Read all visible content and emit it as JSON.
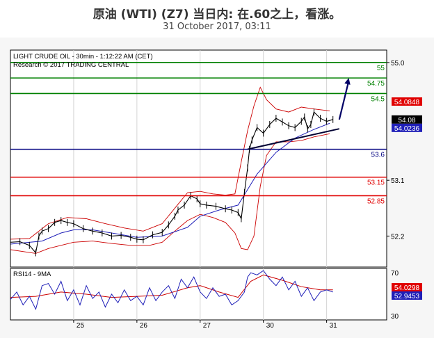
{
  "page": {
    "title": "原油 (WTI) (Z7) 当日内: 在.60之上，看涨。",
    "date": "31 October 2017, 03:11"
  },
  "chart_data": [
    {
      "type": "line",
      "title": "LIGHT CRUDE OIL - 30min - 1:12:22 AM (CET)",
      "subtitle": "Research © 2017 TRADING CENTRAL",
      "x_tick_labels": [
        "25",
        "26",
        "27",
        "30",
        "31"
      ],
      "x_tick_positions": [
        1,
        2,
        3,
        4,
        5
      ],
      "xlim": [
        0,
        5.95
      ],
      "ylim": [
        51.7,
        55.2
      ],
      "y_ticks": [
        52.2,
        53.1,
        55.0
      ],
      "y_tick_labels": [
        "52.2",
        "53.1",
        "55.0"
      ],
      "colors": {
        "resistance": "#008000",
        "pivot": "#000080",
        "support": "#e00000",
        "price": "#000000",
        "ma": "#1f1fb8",
        "band": "#cc0000",
        "arrow": "#000066"
      },
      "levels": [
        {
          "name": "resistance-3",
          "value": 55.0,
          "label": "55",
          "color": "#008000"
        },
        {
          "name": "resistance-2",
          "value": 54.75,
          "label": "54.75",
          "color": "#008000"
        },
        {
          "name": "resistance-1",
          "value": 54.5,
          "label": "54.5",
          "color": "#008000"
        },
        {
          "name": "pivot",
          "value": 53.6,
          "label": "53.6",
          "color": "#000080"
        },
        {
          "name": "support-1",
          "value": 53.15,
          "label": "53.15",
          "color": "#e00000"
        },
        {
          "name": "support-2",
          "value": 52.85,
          "label": "52.85",
          "color": "#e00000"
        }
      ],
      "price_tags": [
        {
          "name": "upper-band-tag",
          "value": 54.0848,
          "label": "54.0848",
          "bg": "#e00000",
          "fg": "#ffffff"
        },
        {
          "name": "last-price-tag",
          "value": 54.08,
          "label": "54.08",
          "bg": "#000000",
          "fg": "#ffffff"
        },
        {
          "name": "ma-tag",
          "value": 54.0236,
          "label": "54.0236",
          "bg": "#1f1fb8",
          "fg": "#ffffff"
        }
      ],
      "trendline": {
        "x": [
          3.75,
          5.2
        ],
        "y": [
          53.6,
          53.93
        ]
      },
      "arrow": {
        "x": [
          5.2,
          5.35
        ],
        "y": [
          54.08,
          54.75
        ]
      },
      "price": {
        "x": [
          0.0,
          0.15,
          0.3,
          0.4,
          0.45,
          0.5,
          0.6,
          0.7,
          0.8,
          0.9,
          1.0,
          1.15,
          1.3,
          1.45,
          1.6,
          1.75,
          1.9,
          2.0,
          2.1,
          2.25,
          2.4,
          2.5,
          2.6,
          2.65,
          2.75,
          2.85,
          2.95,
          3.0,
          3.1,
          3.25,
          3.4,
          3.5,
          3.6,
          3.65,
          3.7,
          3.75,
          3.78,
          3.82,
          3.9,
          4.0,
          4.1,
          4.2,
          4.3,
          4.4,
          4.5,
          4.6,
          4.65,
          4.7,
          4.75,
          4.8,
          4.9,
          5.0,
          5.1
        ],
        "y": [
          52.1,
          52.11,
          52.05,
          51.93,
          52.2,
          52.28,
          52.32,
          52.42,
          52.45,
          52.42,
          52.4,
          52.32,
          52.28,
          52.25,
          52.2,
          52.21,
          52.18,
          52.15,
          52.14,
          52.22,
          52.26,
          52.38,
          52.52,
          52.62,
          52.7,
          52.85,
          52.8,
          52.72,
          52.7,
          52.68,
          52.64,
          52.62,
          52.58,
          52.48,
          52.9,
          53.3,
          53.6,
          53.75,
          53.95,
          53.86,
          54.0,
          54.1,
          54.04,
          53.98,
          53.95,
          54.05,
          54.12,
          53.93,
          54.0,
          54.2,
          54.1,
          54.05,
          54.08
        ]
      },
      "ma": {
        "x": [
          0.0,
          0.5,
          0.8,
          1.0,
          1.3,
          1.6,
          2.0,
          2.4,
          2.8,
          3.0,
          3.3,
          3.6,
          3.9,
          4.2,
          4.5,
          4.8,
          5.05
        ],
        "y": [
          52.07,
          52.12,
          52.25,
          52.3,
          52.3,
          52.25,
          52.18,
          52.2,
          52.34,
          52.52,
          52.62,
          52.7,
          53.2,
          53.55,
          53.78,
          53.92,
          54.02
        ]
      },
      "upper_band": {
        "x": [
          0.0,
          0.3,
          0.6,
          0.9,
          1.2,
          1.5,
          1.8,
          2.1,
          2.4,
          2.6,
          2.8,
          3.0,
          3.2,
          3.4,
          3.55,
          3.65,
          3.75,
          3.85,
          3.95,
          4.05,
          4.2,
          4.4,
          4.6,
          4.8,
          5.05
        ],
        "y": [
          52.15,
          52.16,
          52.4,
          52.5,
          52.48,
          52.4,
          52.33,
          52.28,
          52.4,
          52.65,
          52.9,
          52.92,
          52.88,
          52.86,
          52.88,
          53.4,
          53.9,
          54.3,
          54.6,
          54.4,
          54.25,
          54.2,
          54.28,
          54.25,
          54.22
        ]
      },
      "lower_band": {
        "x": [
          0.0,
          0.2,
          0.4,
          0.6,
          0.8,
          1.0,
          1.3,
          1.6,
          1.9,
          2.2,
          2.4,
          2.6,
          2.8,
          3.0,
          3.2,
          3.4,
          3.55,
          3.65,
          3.75,
          3.85,
          3.95,
          4.05,
          4.2,
          4.4,
          4.6,
          4.8,
          5.05
        ],
        "y": [
          51.98,
          51.95,
          51.92,
          52.0,
          52.05,
          52.1,
          52.12,
          52.08,
          52.05,
          52.05,
          52.1,
          52.28,
          52.45,
          52.55,
          52.5,
          52.42,
          52.25,
          52.0,
          51.98,
          52.2,
          53.0,
          53.5,
          53.72,
          53.72,
          53.74,
          53.8,
          53.85
        ]
      }
    },
    {
      "type": "line",
      "title": "RSI14 - 9MA",
      "xlim": [
        0,
        5.95
      ],
      "ylim": [
        26,
        74
      ],
      "y_ticks": [
        30,
        70
      ],
      "y_tick_labels": [
        "30",
        "70"
      ],
      "colors": {
        "rsi": "#1f1fb8",
        "ma": "#cc0000"
      },
      "price_tags": [
        {
          "name": "rsi-ma-tag",
          "value": 54.0298,
          "label": "54.0298",
          "bg": "#e00000",
          "fg": "#ffffff"
        },
        {
          "name": "rsi-tag",
          "value": 52.9453,
          "label": "52.9453",
          "bg": "#1f1fb8",
          "fg": "#ffffff"
        }
      ],
      "rsi": {
        "x": [
          0.0,
          0.1,
          0.2,
          0.3,
          0.4,
          0.5,
          0.6,
          0.7,
          0.8,
          0.9,
          1.0,
          1.1,
          1.2,
          1.3,
          1.4,
          1.5,
          1.6,
          1.7,
          1.8,
          1.9,
          2.0,
          2.1,
          2.2,
          2.3,
          2.4,
          2.5,
          2.6,
          2.7,
          2.8,
          2.9,
          3.0,
          3.1,
          3.2,
          3.3,
          3.4,
          3.5,
          3.6,
          3.7,
          3.75,
          3.8,
          3.9,
          4.0,
          4.1,
          4.2,
          4.3,
          4.4,
          4.5,
          4.6,
          4.7,
          4.8,
          4.9,
          5.0,
          5.1
        ],
        "y": [
          45,
          52,
          40,
          48,
          36,
          58,
          60,
          50,
          62,
          44,
          54,
          40,
          58,
          46,
          52,
          38,
          50,
          42,
          54,
          44,
          48,
          40,
          56,
          44,
          52,
          58,
          46,
          64,
          56,
          66,
          52,
          46,
          56,
          48,
          50,
          40,
          44,
          52,
          66,
          70,
          68,
          72,
          64,
          58,
          66,
          54,
          62,
          48,
          56,
          44,
          52,
          54,
          52
        ]
      },
      "rsi_ma": {
        "x": [
          0.0,
          0.4,
          0.8,
          1.2,
          1.6,
          2.0,
          2.4,
          2.8,
          3.0,
          3.3,
          3.6,
          3.8,
          4.0,
          4.3,
          4.6,
          4.9,
          5.1
        ],
        "y": [
          47,
          48,
          52,
          50,
          47,
          48,
          49,
          56,
          58,
          52,
          47,
          62,
          68,
          63,
          57,
          54,
          54
        ]
      }
    }
  ]
}
